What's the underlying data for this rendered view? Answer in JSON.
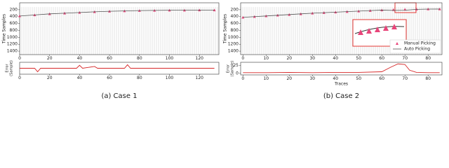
{
  "chart_data": [
    {
      "type": "seismic",
      "caption": "(a) Case 1",
      "ylabel": "Time Samples",
      "x": [
        0,
        10,
        20,
        30,
        40,
        50,
        60,
        70,
        80,
        90,
        100,
        110,
        120,
        130
      ],
      "series": [
        {
          "name": "Manual Picking",
          "color": "#e8457a",
          "marker": "triangle",
          "values": [
            380,
            350,
            320,
            300,
            280,
            260,
            245,
            235,
            225,
            220,
            215,
            215,
            210,
            210
          ]
        },
        {
          "name": "Auto Picking",
          "color": "#555555",
          "marker": "line",
          "values": [
            382,
            352,
            321,
            301,
            281,
            261,
            246,
            236,
            226,
            221,
            216,
            215,
            211,
            210
          ]
        }
      ],
      "xlim": [
        0,
        133
      ],
      "xticks": [
        0,
        20,
        40,
        60,
        80,
        100,
        120
      ],
      "ylim": [
        0,
        1500
      ],
      "y_inverted": true,
      "yticks": [
        200,
        400,
        600,
        800,
        1000,
        1200,
        1400
      ]
    },
    {
      "type": "line",
      "ylabel": [
        "Error",
        "(Sample)"
      ],
      "x": [
        0,
        10,
        12,
        14,
        20,
        30,
        38,
        40,
        42,
        50,
        52,
        60,
        70,
        72,
        74,
        80,
        100,
        120,
        130
      ],
      "series": [
        {
          "color": "#d62728",
          "values": [
            0,
            0,
            -6,
            0,
            0,
            0,
            0,
            5,
            0,
            3,
            0,
            0,
            0,
            6,
            0,
            0,
            0,
            0,
            0
          ]
        }
      ],
      "xlim": [
        0,
        133
      ],
      "xticks": [
        0,
        20,
        40,
        60,
        80,
        100,
        120
      ],
      "ylim": [
        -10,
        10
      ]
    },
    {
      "type": "seismic",
      "caption": "(b) Case 2",
      "ylabel": "Time Samples",
      "legend": "lower right",
      "x": [
        0,
        5,
        10,
        15,
        20,
        25,
        30,
        35,
        40,
        45,
        50,
        55,
        60,
        65,
        70,
        75,
        80,
        85
      ],
      "series": [
        {
          "name": "Manual Picking",
          "color": "#e8457a",
          "marker": "triangle",
          "values": [
            420,
            400,
            380,
            360,
            340,
            320,
            300,
            285,
            270,
            255,
            240,
            225,
            210,
            200,
            190,
            185,
            180,
            180
          ]
        },
        {
          "name": "Auto Picking",
          "color": "#555555",
          "marker": "line",
          "values": [
            421,
            401,
            381,
            361,
            341,
            321,
            301,
            286,
            271,
            256,
            241,
            226,
            212,
            220,
            215,
            190,
            182,
            181
          ]
        }
      ],
      "xlim": [
        -1,
        86
      ],
      "xticks": [
        0,
        10,
        20,
        30,
        40,
        50,
        60,
        70,
        80
      ],
      "ylim": [
        0,
        1500
      ],
      "y_inverted": true,
      "yticks": [
        200,
        400,
        600,
        800,
        1000,
        1200,
        1400
      ]
    },
    {
      "type": "line",
      "ylabel": [
        "Error",
        "(Sample)"
      ],
      "xlabel": "Traces",
      "x": [
        0,
        10,
        20,
        30,
        40,
        50,
        60,
        64,
        67,
        70,
        72,
        75,
        80,
        85
      ],
      "series": [
        {
          "color": "#d62728",
          "values": [
            2,
            2,
            3,
            2,
            3,
            3,
            5,
            20,
            30,
            28,
            10,
            3,
            2,
            2
          ]
        }
      ],
      "xlim": [
        -1,
        86
      ],
      "xticks": [
        0,
        10,
        20,
        30,
        40,
        50,
        60,
        70,
        80
      ],
      "ylim": [
        -5,
        35
      ],
      "yticks": [
        0,
        25
      ]
    }
  ]
}
